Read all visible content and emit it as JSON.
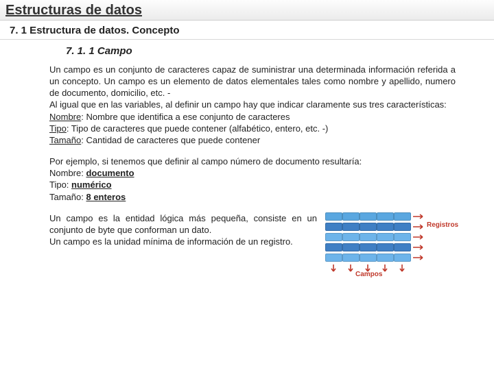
{
  "page_title": "Estructuras de datos",
  "section_title": "7. 1 Estructura de datos. Concepto",
  "subsection_title": "7. 1. 1 Campo",
  "intro_para": "Un campo es un conjunto de caracteres capaz de suministrar una determinada información referida a un concepto. Un campo es un elemento de datos elementales tales como nombre y apellido, numero de documento, domicilio, etc. -",
  "intro_para2": "Al igual que en las variables, al definir un campo hay que indicar claramente sus tres características:",
  "def_nombre_label": "Nombre",
  "def_nombre_text": ": Nombre que identifica a ese conjunto de caracteres",
  "def_tipo_label": "Tipo",
  "def_tipo_text": ": Tipo de caracteres que puede contener (alfabético, entero, etc. -)",
  "def_tamano_label": "Tamaño",
  "def_tamano_text": ": Cantidad de caracteres que puede contener",
  "example_intro": "Por ejemplo, si tenemos que definir al campo número de documento resultaría:",
  "example_nombre_label": "Nombre: ",
  "example_nombre_value": "documento",
  "example_tipo_label": "Tipo: ",
  "example_tipo_value": "numérico",
  "example_tamano_label": "Tamaño: ",
  "example_tamano_value": "8 enteros",
  "closing_para1": "Un campo es la entidad lógica más pequeña, consiste en un conjunto de byte que conforman un dato.",
  "closing_para2": "Un campo es la unidad mínima de información de un registro.",
  "diagram": {
    "rows": 5,
    "cols": 5,
    "row_colors": [
      "#5aa7e0",
      "#3f7fc4",
      "#6db4ea",
      "#3f7fc4",
      "#6db4ea"
    ],
    "registros_label": "Registros",
    "registros_color": "#c0392b",
    "campos_label": "Campos",
    "campos_color": "#c0392b",
    "arrow_color": "#c0392b"
  }
}
